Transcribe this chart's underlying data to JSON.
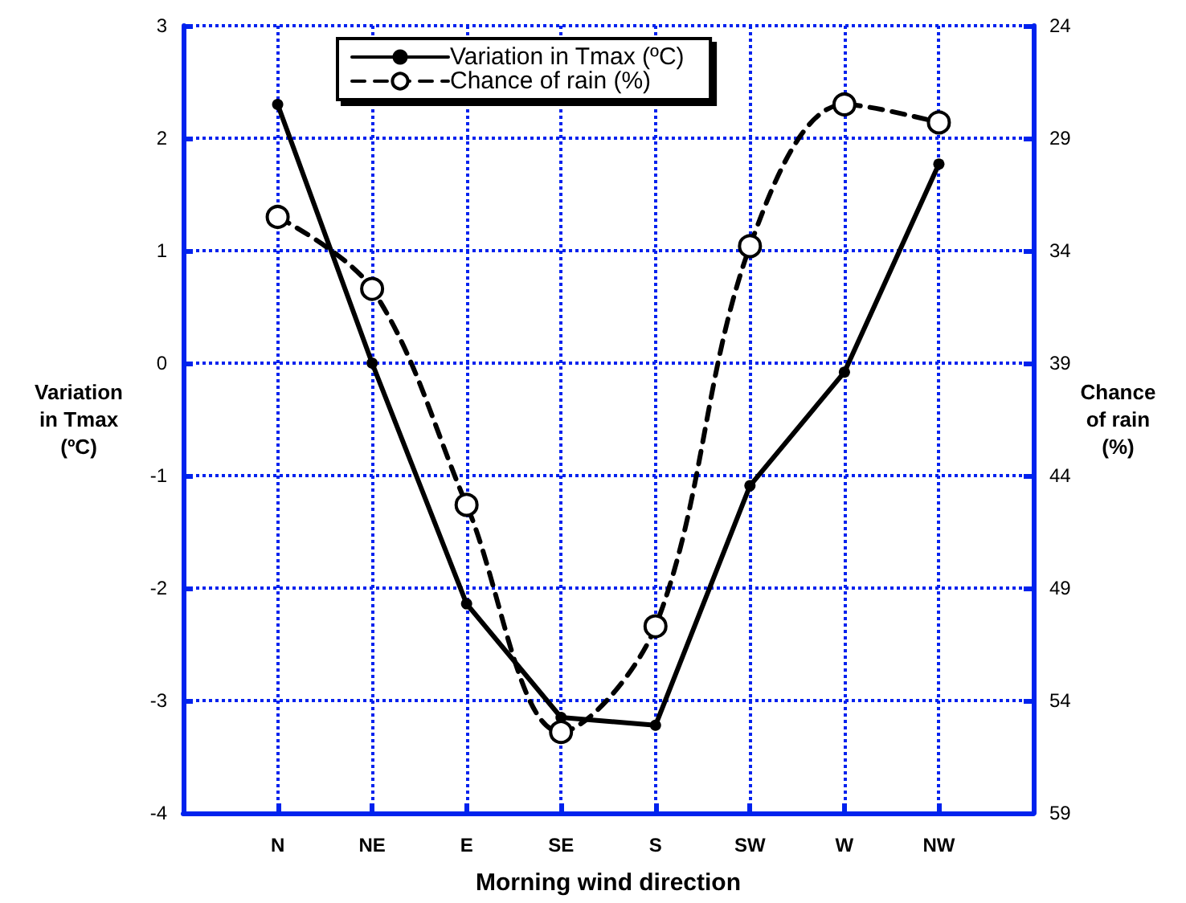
{
  "chart_data": {
    "type": "line",
    "categories": [
      "N",
      "NE",
      "E",
      "SE",
      "S",
      "SW",
      "W",
      "NW"
    ],
    "series": [
      {
        "name": "Variation in Tmax (ºC)",
        "color": "#000000",
        "marker": "circle",
        "line_style": "solid",
        "values": [
          2.3,
          0.0,
          -2.14,
          -3.15,
          -3.22,
          -1.09,
          -0.08,
          1.77
        ]
      },
      {
        "name": "Chance of rain (%)",
        "color": "#000000",
        "marker": "circle",
        "line_style": "dashed",
        "axis": "y2",
        "values": [
          32.5,
          35.7,
          45.3,
          55.4,
          50.7,
          33.8,
          27.5,
          28.3
        ]
      }
    ],
    "xlabel": "Morning wind direction",
    "ylabel": "Variation\nin Tmax\n(ºC)",
    "y2label": "Chance\nof rain\n(%)",
    "ylim": [
      -4,
      3
    ],
    "yticks": [
      -4,
      -3,
      -2,
      -1,
      0,
      1,
      2,
      3
    ],
    "y2lim": [
      59,
      24
    ],
    "y2ticks": [
      24,
      29,
      34,
      39,
      44,
      49,
      54,
      59
    ],
    "grid": true,
    "legend": "top"
  }
}
